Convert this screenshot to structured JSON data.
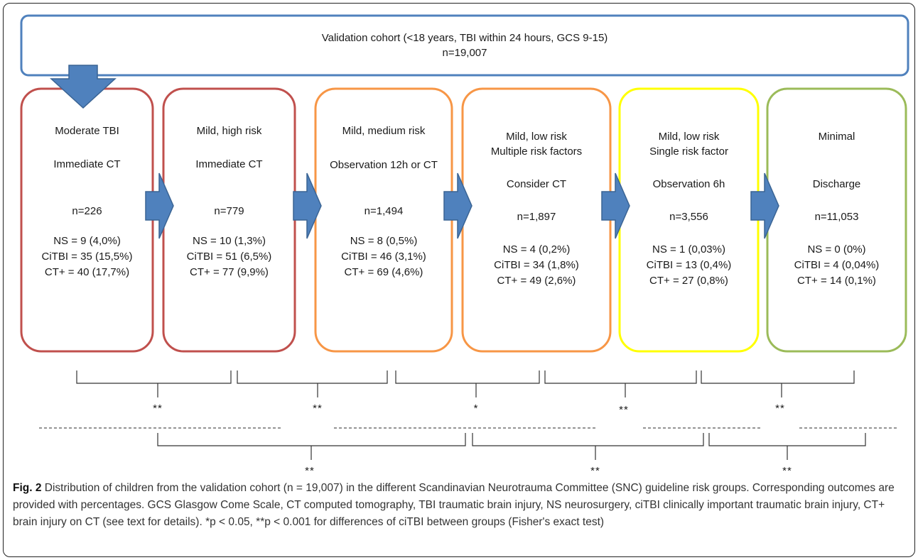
{
  "cohort": {
    "title": "Validation cohort (<18 years, TBI within 24 hours, GCS 9-15)",
    "count": "n=19,007"
  },
  "groups": [
    {
      "category": "Moderate TBI",
      "action": "Immediate CT",
      "n": "n=226",
      "ns": "NS = 9 (4,0%)",
      "citbi": "CiTBI = 35 (15,5%)",
      "ctplus": "CT+ = 40 (17,7%)",
      "border_color": "#c0504d"
    },
    {
      "category": "Mild, high risk",
      "action": "Immediate CT",
      "n": "n=779",
      "ns": "NS = 10 (1,3%)",
      "citbi": "CiTBI = 51 (6,5%)",
      "ctplus": "CT+ = 77 (9,9%)",
      "border_color": "#c0504d"
    },
    {
      "category": "Mild, medium risk",
      "action": "Observation 12h or CT",
      "n": "n=1,494",
      "ns": "NS = 8 (0,5%)",
      "citbi": "CiTBI = 46 (3,1%)",
      "ctplus": "CT+ = 69 (4,6%)",
      "border_color": "#f79646"
    },
    {
      "category": "Mild, low risk",
      "subcategory": "Multiple risk factors",
      "action": "Consider CT",
      "n": "n=1,897",
      "ns": "NS = 4 (0,2%)",
      "citbi": "CiTBI = 34 (1,8%)",
      "ctplus": "CT+ = 49 (2,6%)",
      "border_color": "#f79646"
    },
    {
      "category": "Mild, low risk",
      "subcategory": "Single risk factor",
      "action": "Observation 6h",
      "n": "n=3,556",
      "ns": "NS = 1 (0,03%)",
      "citbi": "CiTBI = 13 (0,4%)",
      "ctplus": "CT+ = 27 (0,8%)",
      "border_color": "#ffff00"
    },
    {
      "category": "Minimal",
      "action": "Discharge",
      "n": "n=11,053",
      "ns": "NS = 0 (0%)",
      "citbi": "CiTBI = 4 (0,04%)",
      "ctplus": "CT+ = 14 (0,1%)",
      "border_color": "#9bbb59"
    }
  ],
  "significance": {
    "adjacent": [
      "**",
      "**",
      "*",
      "**",
      "**"
    ],
    "combined": [
      "**",
      "**",
      "**"
    ]
  },
  "caption": {
    "label": "Fig. 2",
    "text": "Distribution of children from the validation cohort (n = 19,007) in the different Scandinavian Neurotrauma Committee (SNC) guideline risk groups. Corresponding outcomes are provided with percentages. GCS Glasgow Come Scale, CT computed tomography, TBI traumatic brain injury, NS neurosurgery, ciTBI clinically important traumatic brain injury, CT+ brain injury on CT (see text for details). *p < 0.05, **p < 0.001 for differences of ciTBI between groups (Fisher's exact test)"
  },
  "colors": {
    "cohort_border": "#4f81bd",
    "arrow_fill": "#4f81bd",
    "arrow_stroke": "#3a6494"
  }
}
